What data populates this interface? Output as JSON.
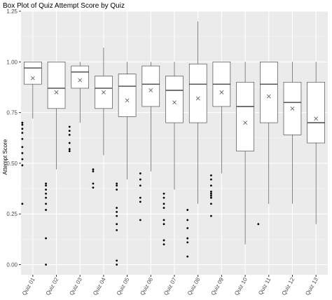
{
  "chart_data": {
    "type": "box",
    "title": "Box Plot of Quiz Attempt Score by Quiz",
    "xlabel": "",
    "ylabel": "Attempt Score",
    "ylim": [
      -0.05,
      1.25
    ],
    "yticks": [
      "0.00",
      "0.25",
      "0.50",
      "0.75",
      "1.00",
      "1.25"
    ],
    "grid": true,
    "mean_marker": "x",
    "categories": [
      "Quiz 01",
      "Quiz 02",
      "Quiz 03",
      "Quiz 04",
      "Quiz 05",
      "Quiz 06",
      "Quiz 07",
      "Quiz 08",
      "Quiz 09",
      "Quiz 10",
      "Quiz 11",
      "Quiz 12",
      "Quiz 13"
    ],
    "boxes": [
      {
        "whisker_low": 0.72,
        "q1": 0.89,
        "median": 0.97,
        "q3": 1.0,
        "whisker_high": 1.0,
        "mean": 0.92,
        "outliers": [
          0.7,
          0.69,
          0.67,
          0.65,
          0.62,
          0.58,
          0.55,
          0.52,
          0.49,
          0.3
        ]
      },
      {
        "whisker_low": 0.47,
        "q1": 0.77,
        "median": 0.87,
        "q3": 1.0,
        "whisker_high": 1.0,
        "mean": 0.85,
        "outliers": [
          0.4,
          0.39,
          0.37,
          0.35,
          0.33,
          0.3,
          0.27,
          0.13,
          0.0
        ]
      },
      {
        "whisker_low": 0.7,
        "q1": 0.87,
        "median": 0.95,
        "q3": 0.98,
        "whisker_high": 1.0,
        "mean": 0.91,
        "outliers": [
          0.68,
          0.66,
          0.64,
          0.6,
          0.57,
          0.56
        ]
      },
      {
        "whisker_low": 0.54,
        "q1": 0.77,
        "median": 0.87,
        "q3": 0.93,
        "whisker_high": 1.07,
        "mean": 0.85,
        "outliers": [
          0.47,
          0.46,
          0.4,
          0.38
        ]
      },
      {
        "whisker_low": 0.42,
        "q1": 0.73,
        "median": 0.88,
        "q3": 0.94,
        "whisker_high": 1.0,
        "mean": 0.81,
        "outliers": [
          0.4,
          0.39,
          0.37,
          0.28,
          0.26,
          0.24,
          0.2,
          0.17,
          0.02,
          0.0
        ]
      },
      {
        "whisker_low": 0.46,
        "q1": 0.78,
        "median": 0.89,
        "q3": 0.98,
        "whisker_high": 1.0,
        "mean": 0.86,
        "outliers": [
          0.45,
          0.42,
          0.39,
          0.33,
          0.31,
          0.22
        ]
      },
      {
        "whisker_low": 0.37,
        "q1": 0.7,
        "median": 0.86,
        "q3": 0.93,
        "whisker_high": 1.0,
        "mean": 0.8,
        "outliers": [
          0.35,
          0.33,
          0.3,
          0.28,
          0.22,
          0.2,
          0.12,
          0.1
        ]
      },
      {
        "whisker_low": 0.3,
        "q1": 0.7,
        "median": 0.89,
        "q3": 0.99,
        "whisker_high": 1.2,
        "mean": 0.82,
        "outliers": [
          0.27,
          0.22,
          0.18,
          0.13,
          0.11,
          0.04
        ]
      },
      {
        "whisker_low": 0.45,
        "q1": 0.78,
        "median": 0.89,
        "q3": 1.0,
        "whisker_high": 1.0,
        "mean": 0.85,
        "outliers": [
          0.44,
          0.42,
          0.39,
          0.36,
          0.35,
          0.34,
          0.33,
          0.3,
          0.24
        ]
      },
      {
        "whisker_low": 0.1,
        "q1": 0.56,
        "median": 0.78,
        "q3": 0.9,
        "whisker_high": 1.0,
        "mean": 0.7,
        "outliers": []
      },
      {
        "whisker_low": 0.3,
        "q1": 0.7,
        "median": 0.89,
        "q3": 1.0,
        "whisker_high": 1.0,
        "mean": 0.83,
        "outliers": [
          0.2
        ]
      },
      {
        "whisker_low": 0.3,
        "q1": 0.64,
        "median": 0.8,
        "q3": 0.9,
        "whisker_high": 1.0,
        "mean": 0.77,
        "outliers": []
      },
      {
        "whisker_low": 0.2,
        "q1": 0.6,
        "median": 0.7,
        "q3": 0.9,
        "whisker_high": 1.0,
        "mean": 0.72,
        "outliers": []
      }
    ]
  }
}
